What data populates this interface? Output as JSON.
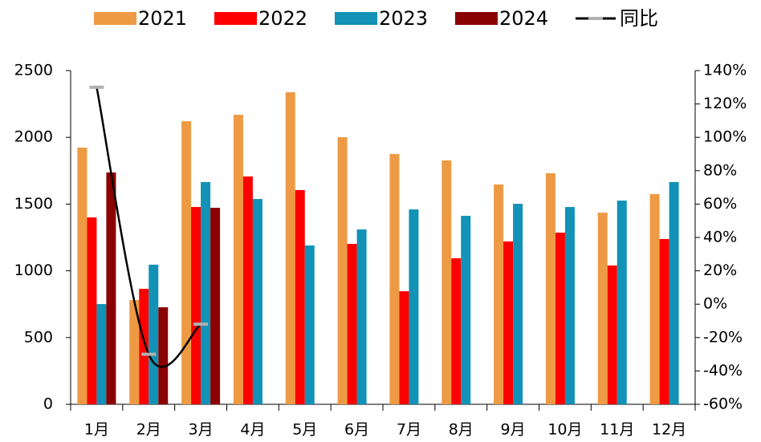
{
  "chart_data": {
    "type": "bar",
    "categories": [
      "1月",
      "2月",
      "3月",
      "4月",
      "5月",
      "6月",
      "7月",
      "8月",
      "9月",
      "10月",
      "11月",
      "12月"
    ],
    "series": [
      {
        "name": "2021",
        "color": "#ee9a45",
        "values": [
          1923,
          781,
          2121,
          2169,
          2338,
          2001,
          1875,
          1827,
          1647,
          1731,
          1436,
          1575
        ]
      },
      {
        "name": "2022",
        "color": "#ff0000",
        "values": [
          1400,
          865,
          1478,
          1707,
          1605,
          1202,
          847,
          1094,
          1220,
          1286,
          1040,
          1238
        ]
      },
      {
        "name": "2023",
        "color": "#1192b6",
        "values": [
          751,
          1046,
          1665,
          1538,
          1190,
          1310,
          1460,
          1412,
          1502,
          1478,
          1526,
          1665
        ]
      },
      {
        "name": "2024",
        "color": "#8b0000",
        "values": [
          1737,
          727,
          1472,
          null,
          null,
          null,
          null,
          null,
          null,
          null,
          null,
          null
        ]
      },
      {
        "name": "同比",
        "type": "line",
        "axis": "y2",
        "color": "#000000",
        "marker_color": "#b0b0b0",
        "values": [
          130,
          -30,
          -12,
          null,
          null,
          null,
          null,
          null,
          null,
          null,
          null,
          null
        ]
      }
    ],
    "ylim": [
      0,
      2500
    ],
    "yticks": [
      0,
      500,
      1000,
      1500,
      2000,
      2500
    ],
    "y2lim": [
      -60,
      140
    ],
    "y2ticks": [
      {
        "value": -60,
        "label": "-60%"
      },
      {
        "value": -40,
        "label": "-40%"
      },
      {
        "value": -20,
        "label": "-20%"
      },
      {
        "value": 0,
        "label": "0%"
      },
      {
        "value": 20,
        "label": "20%"
      },
      {
        "value": 40,
        "label": "40%"
      },
      {
        "value": 60,
        "label": "60%"
      },
      {
        "value": 80,
        "label": "80%"
      },
      {
        "value": 100,
        "label": "100%"
      },
      {
        "value": 120,
        "label": "120%"
      },
      {
        "value": 140,
        "label": "140%"
      }
    ],
    "legend": "top",
    "grid": false
  }
}
